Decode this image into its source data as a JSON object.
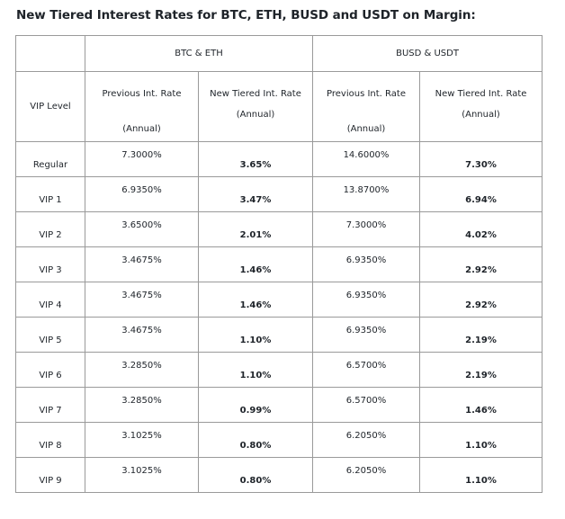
{
  "title": "New Tiered Interest Rates for BTC, ETH, BUSD and USDT on Margin:",
  "table": {
    "groups": [
      "BTC & ETH",
      "BUSD & USDT"
    ],
    "vip_level_header": "VIP Level",
    "prev_header_line1": "Previous Int. Rate",
    "new_header_line1": "New Tiered Int. Rate",
    "header_line2": "(Annual)",
    "rows": [
      {
        "level": "Regular",
        "btc_eth_prev": "7.3000%",
        "btc_eth_new": "3.65%",
        "busd_usdt_prev": "14.6000%",
        "busd_usdt_new": "7.30%"
      },
      {
        "level": "VIP 1",
        "btc_eth_prev": "6.9350%",
        "btc_eth_new": "3.47%",
        "busd_usdt_prev": "13.8700%",
        "busd_usdt_new": "6.94%"
      },
      {
        "level": "VIP 2",
        "btc_eth_prev": "3.6500%",
        "btc_eth_new": "2.01%",
        "busd_usdt_prev": "7.3000%",
        "busd_usdt_new": "4.02%"
      },
      {
        "level": "VIP 3",
        "btc_eth_prev": "3.4675%",
        "btc_eth_new": "1.46%",
        "busd_usdt_prev": "6.9350%",
        "busd_usdt_new": "2.92%"
      },
      {
        "level": "VIP 4",
        "btc_eth_prev": "3.4675%",
        "btc_eth_new": "1.46%",
        "busd_usdt_prev": "6.9350%",
        "busd_usdt_new": "2.92%"
      },
      {
        "level": "VIP 5",
        "btc_eth_prev": "3.4675%",
        "btc_eth_new": "1.10%",
        "busd_usdt_prev": "6.9350%",
        "busd_usdt_new": "2.19%"
      },
      {
        "level": "VIP 6",
        "btc_eth_prev": "3.2850%",
        "btc_eth_new": "1.10%",
        "busd_usdt_prev": "6.5700%",
        "busd_usdt_new": "2.19%"
      },
      {
        "level": "VIP 7",
        "btc_eth_prev": "3.2850%",
        "btc_eth_new": "0.99%",
        "busd_usdt_prev": "6.5700%",
        "busd_usdt_new": "1.46%"
      },
      {
        "level": "VIP 8",
        "btc_eth_prev": "3.1025%",
        "btc_eth_new": "0.80%",
        "busd_usdt_prev": "6.2050%",
        "busd_usdt_new": "1.10%"
      },
      {
        "level": "VIP 9",
        "btc_eth_prev": "3.1025%",
        "btc_eth_new": "0.80%",
        "busd_usdt_prev": "6.2050%",
        "busd_usdt_new": "1.10%"
      }
    ]
  }
}
